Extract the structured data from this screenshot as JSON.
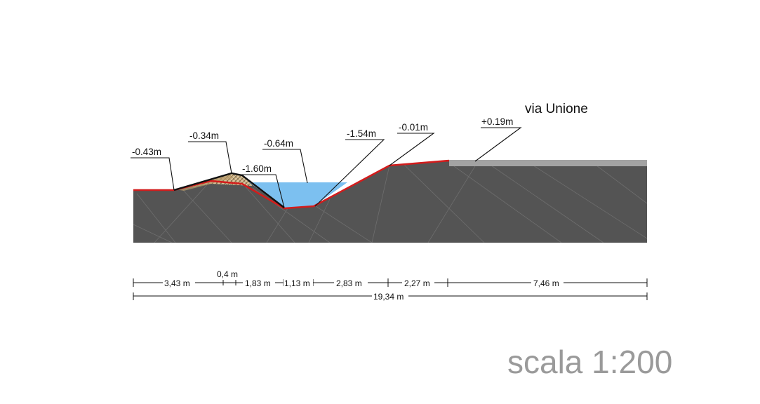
{
  "section": {
    "street_name": "via Unione",
    "scale_label": "scala 1:200",
    "elevation_labels": [
      "-0.43m",
      "-0.34m",
      "-1.60m",
      "-0.64m",
      "-1.54m",
      "-0.01m",
      "+0.19m"
    ],
    "segment_dimensions": [
      "3,43 m",
      "0,4 m",
      "1,83 m",
      "1,13 m",
      "2,83 m",
      "2,27 m",
      "7,46 m"
    ],
    "total_dimension": "19,34 m"
  },
  "colors": {
    "ground": "#545454",
    "profile_line": "#d21c1c",
    "water": "#7cc0f0",
    "road": "#a3a3a3",
    "embankment_fill": "#d8c29a",
    "scale_text": "#9a9a9a"
  }
}
